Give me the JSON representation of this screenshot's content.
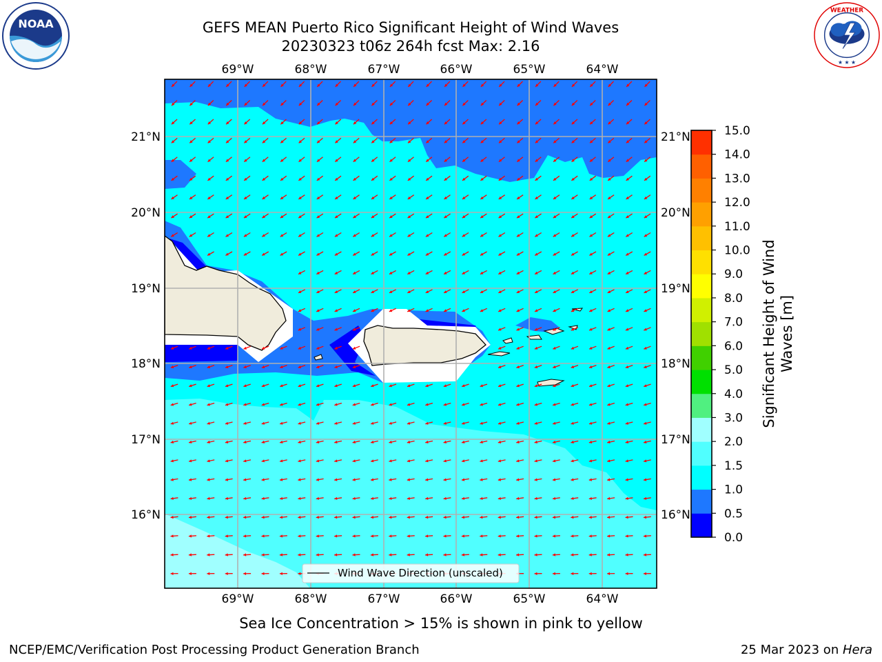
{
  "header": {
    "title_line1": "GEFS MEAN Puerto Rico Significant Height of Wind Waves",
    "title_line2": "20230323 t06z 264h fcst   Max: 2.16"
  },
  "logos": {
    "noaa": {
      "icon": "noaa-logo",
      "text": "NOAA",
      "ring_text": "NATIONAL OCEANIC AND ATMOSPHERIC ADMINISTRATION · U.S. DEPARTMENT OF COMMERCE"
    },
    "nws": {
      "icon": "nws-logo",
      "ring_text": "NATIONAL WEATHER SERVICE"
    }
  },
  "map": {
    "lon_ticks": [
      "69°W",
      "68°W",
      "67°W",
      "66°W",
      "65°W",
      "64°W"
    ],
    "lat_ticks": [
      "21°N",
      "20°N",
      "19°N",
      "18°N",
      "17°N",
      "16°N"
    ],
    "legend_label": "Wind Wave Direction (unscaled)",
    "arrow_color": "#ff0000",
    "land_color": "#f0ecdc",
    "gridlines": true
  },
  "colorbar": {
    "label": "Significant Height of Wind Waves [m]",
    "label_line1": "Significant Height of Wind",
    "label_line2": "Waves [m]",
    "ticks": [
      "0.0",
      "0.5",
      "1.0",
      "1.5",
      "2.0",
      "3.0",
      "4.0",
      "5.0",
      "6.0",
      "7.0",
      "8.0",
      "9.0",
      "10.0",
      "11.0",
      "12.0",
      "13.0",
      "14.0",
      "15.0"
    ],
    "colors": [
      "#0000ff",
      "#1e78ff",
      "#00ffff",
      "#50ffff",
      "#a0ffff",
      "#50f080",
      "#00e000",
      "#40d000",
      "#a0e000",
      "#d0f000",
      "#ffff00",
      "#ffe000",
      "#ffc000",
      "#ffa000",
      "#ff8000",
      "#ff6000",
      "#ff3000",
      "#ff0000"
    ]
  },
  "chart_data": {
    "type": "heatmap",
    "title": "GEFS MEAN Puerto Rico Significant Height of Wind Waves",
    "subtitle": "20230323 t06z 264h fcst   Max: 2.16",
    "x_ticks": [
      "69°W",
      "68°W",
      "67°W",
      "66°W",
      "65°W",
      "64°W"
    ],
    "y_ticks": [
      "21°N",
      "20°N",
      "19°N",
      "18°N",
      "17°N",
      "16°N"
    ],
    "colorbar_levels": [
      0.0,
      0.5,
      1.0,
      1.5,
      2.0,
      3.0,
      4.0,
      5.0,
      6.0,
      7.0,
      8.0,
      9.0,
      10.0,
      11.0,
      12.0,
      13.0,
      14.0,
      15.0
    ],
    "colorbar_label": "Significant Height of Wind Waves [m]",
    "max": 2.16,
    "units": "m",
    "vector_field": "Wind Wave Direction (unscaled)",
    "arrow_direction": "toward west-southwest"
  },
  "captions": {
    "sea_ice": "Sea Ice Concentration > 15% is shown in pink to yellow"
  },
  "footer": {
    "left": "NCEP/EMC/Verification Post Processing Product Generation Branch",
    "right_prefix": "25 Mar 2023 on ",
    "right_italic": "Hera"
  }
}
